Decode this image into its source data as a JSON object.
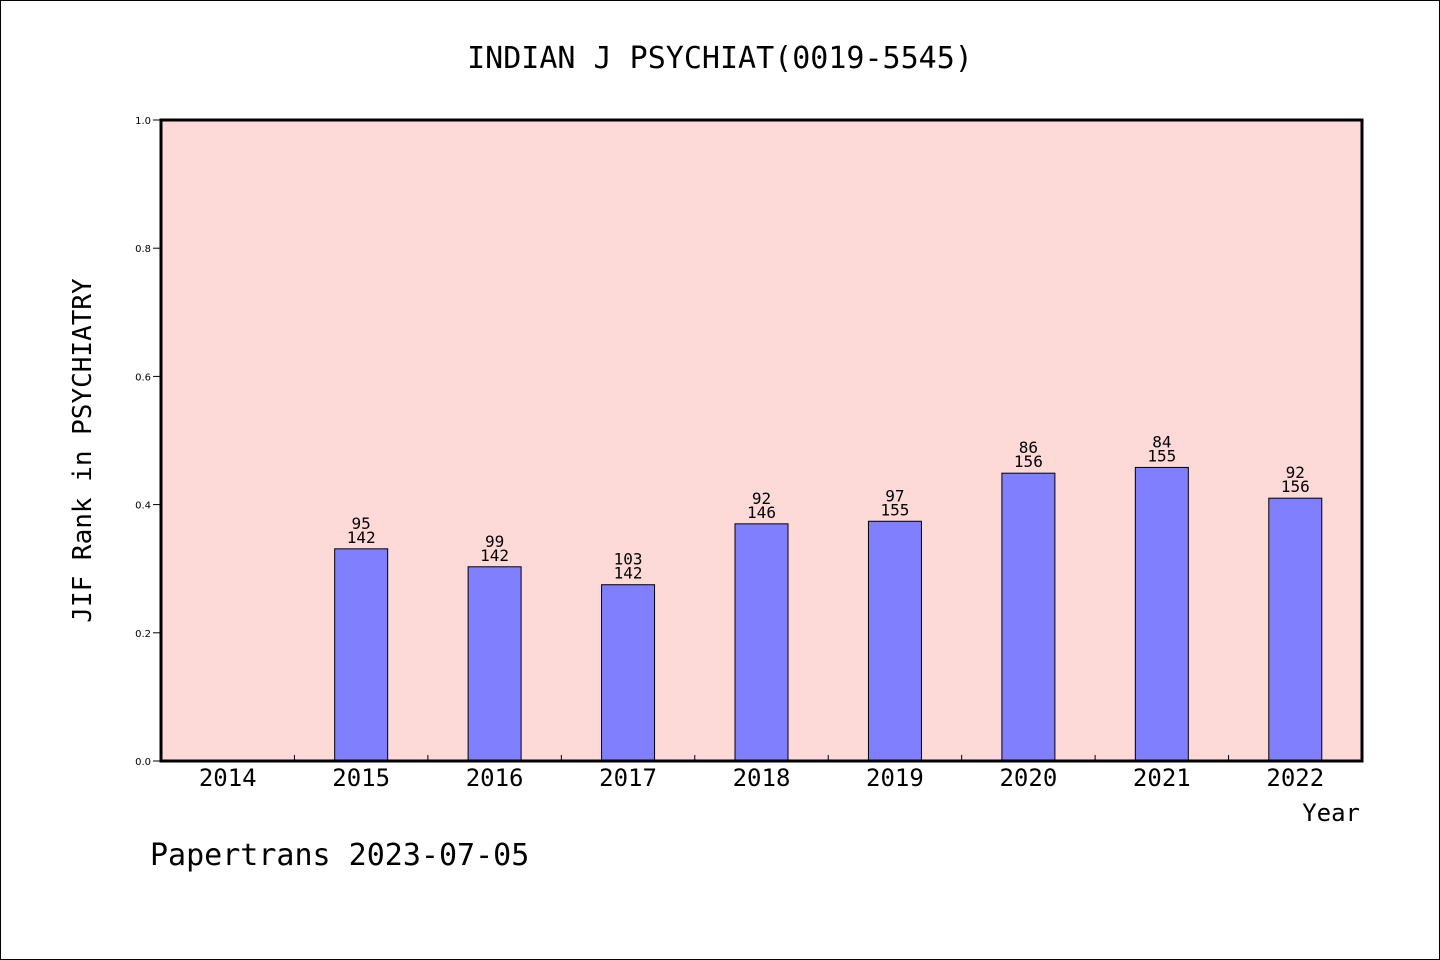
{
  "chart_data": {
    "type": "bar",
    "title": "INDIAN J PSYCHIAT(0019-5545)",
    "xlabel": "Year",
    "ylabel": "JIF Rank in PSYCHIATRY",
    "ylim": [
      0.0,
      1.0
    ],
    "yticks": [
      "0.0",
      "0.2",
      "0.4",
      "0.6",
      "0.8",
      "1.0"
    ],
    "categories": [
      "2014",
      "2015",
      "2016",
      "2017",
      "2018",
      "2019",
      "2020",
      "2021",
      "2022"
    ],
    "values": [
      null,
      0.331,
      0.303,
      0.275,
      0.37,
      0.374,
      0.449,
      0.458,
      0.41
    ],
    "rank_labels": [
      "",
      "95",
      "99",
      "103",
      "92",
      "97",
      "86",
      "84",
      "92"
    ],
    "total_labels": [
      "",
      "142",
      "142",
      "142",
      "146",
      "155",
      "156",
      "155",
      "156"
    ],
    "grid": false,
    "colors": {
      "plot_background": "#fddad7",
      "bar_fill": "#8080ff",
      "bar_stroke": "#000000"
    }
  },
  "footer": "Papertrans 2023-07-05"
}
